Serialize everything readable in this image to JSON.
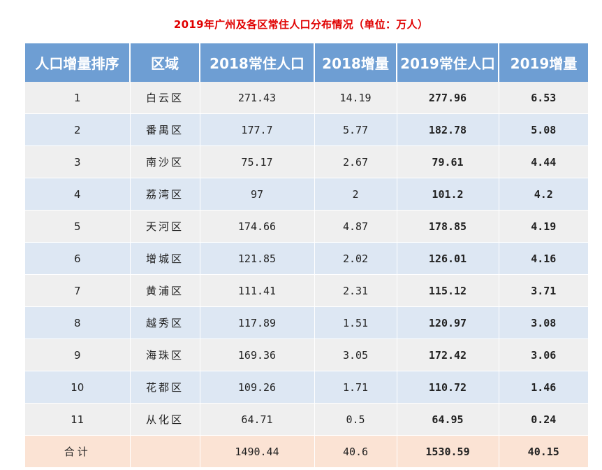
{
  "title": "2019年广州及各区常住人口分布情况（单位：万人）",
  "colors": {
    "title": "#e00000",
    "header_bg": "#6e9ed3",
    "row_odd": "#efefef",
    "row_even": "#dde7f3",
    "row_total": "#fbe3d4"
  },
  "headers": [
    "人口增量排序",
    "区域",
    "2018常住人口",
    "2018增量",
    "2019常住人口",
    "2019增量"
  ],
  "rows": [
    [
      "1",
      "白云区",
      "271.43",
      "14.19",
      "277.96",
      "6.53"
    ],
    [
      "2",
      "番禺区",
      "177.7",
      "5.77",
      "182.78",
      "5.08"
    ],
    [
      "3",
      "南沙区",
      "75.17",
      "2.67",
      "79.61",
      "4.44"
    ],
    [
      "4",
      "荔湾区",
      "97",
      "2",
      "101.2",
      "4.2"
    ],
    [
      "5",
      "天河区",
      "174.66",
      "4.87",
      "178.85",
      "4.19"
    ],
    [
      "6",
      "增城区",
      "121.85",
      "2.02",
      "126.01",
      "4.16"
    ],
    [
      "7",
      "黄浦区",
      "111.41",
      "2.31",
      "115.12",
      "3.71"
    ],
    [
      "8",
      "越秀区",
      "117.89",
      "1.51",
      "120.97",
      "3.08"
    ],
    [
      "9",
      "海珠区",
      "169.36",
      "3.05",
      "172.42",
      "3.06"
    ],
    [
      "10",
      "花都区",
      "109.26",
      "1.71",
      "110.72",
      "1.46"
    ],
    [
      "11",
      "从化区",
      "64.71",
      "0.5",
      "64.95",
      "0.24"
    ]
  ],
  "total": [
    "合计",
    "",
    "1490.44",
    "40.6",
    "1530.59",
    "40.15"
  ]
}
